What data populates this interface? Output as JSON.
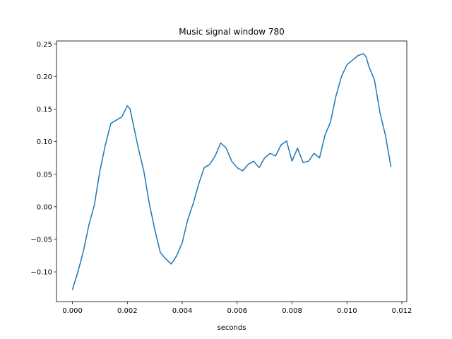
{
  "chart_data": {
    "type": "line",
    "title": "Music signal window 780",
    "xlabel": "seconds",
    "ylabel": "",
    "xlim": [
      -0.00058,
      0.01218
    ],
    "ylim": [
      -0.1455,
      0.2545
    ],
    "x_ticks": [
      0.0,
      0.002,
      0.004,
      0.006,
      0.008,
      0.01,
      0.012
    ],
    "x_tick_labels": [
      "0.000",
      "0.002",
      "0.004",
      "0.006",
      "0.008",
      "0.010",
      "0.012"
    ],
    "y_ticks": [
      -0.1,
      -0.05,
      0.0,
      0.05,
      0.1,
      0.15,
      0.2,
      0.25
    ],
    "y_tick_labels": [
      "−0.10",
      "−0.05",
      "0.00",
      "0.05",
      "0.10",
      "0.15",
      "0.20",
      "0.25"
    ],
    "grid": false,
    "series": [
      {
        "color": "#1f77b4",
        "x": [
          0.0,
          0.0002,
          0.0004,
          0.0006,
          0.0008,
          0.001,
          0.0012,
          0.0014,
          0.0016,
          0.0018,
          0.002,
          0.0021,
          0.0022,
          0.0024,
          0.0026,
          0.0028,
          0.003,
          0.0032,
          0.0034,
          0.0036,
          0.0038,
          0.004,
          0.0042,
          0.0044,
          0.0046,
          0.0048,
          0.005,
          0.0052,
          0.0054,
          0.0056,
          0.0058,
          0.006,
          0.0062,
          0.0064,
          0.0066,
          0.0068,
          0.007,
          0.0072,
          0.0074,
          0.0076,
          0.0078,
          0.008,
          0.0082,
          0.0084,
          0.0086,
          0.0088,
          0.009,
          0.0092,
          0.0094,
          0.0096,
          0.0098,
          0.01,
          0.0102,
          0.0104,
          0.0106,
          0.0107,
          0.0108,
          0.011,
          0.0112,
          0.0114,
          0.0116
        ],
        "y": [
          -0.127,
          -0.1,
          -0.068,
          -0.028,
          0.003,
          0.055,
          0.095,
          0.128,
          0.133,
          0.138,
          0.155,
          0.15,
          0.13,
          0.09,
          0.055,
          0.005,
          -0.035,
          -0.07,
          -0.08,
          -0.088,
          -0.075,
          -0.055,
          -0.02,
          0.005,
          0.035,
          0.06,
          0.065,
          0.078,
          0.098,
          0.09,
          0.07,
          0.06,
          0.055,
          0.065,
          0.07,
          0.06,
          0.075,
          0.082,
          0.078,
          0.095,
          0.101,
          0.07,
          0.09,
          0.068,
          0.07,
          0.082,
          0.075,
          0.11,
          0.13,
          0.17,
          0.2,
          0.218,
          0.225,
          0.232,
          0.235,
          0.23,
          0.215,
          0.195,
          0.145,
          0.11,
          0.062
        ]
      }
    ]
  }
}
